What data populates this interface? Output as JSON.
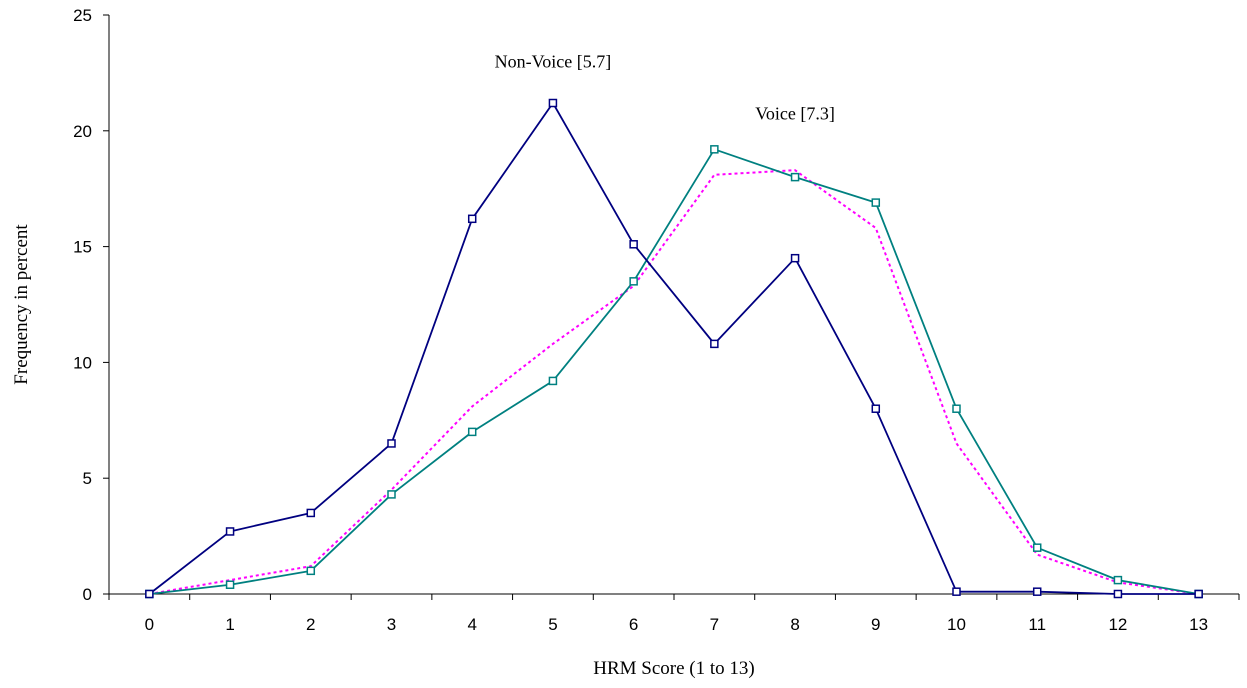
{
  "chart_data": {
    "type": "line",
    "title": "",
    "xlabel": "HRM Score (1 to 13)",
    "ylabel": "Frequency in percent",
    "x": [
      0,
      1,
      2,
      3,
      4,
      5,
      6,
      7,
      8,
      9,
      10,
      11,
      12,
      13
    ],
    "xlim": [
      -0.5,
      13.5
    ],
    "ylim": [
      0,
      25
    ],
    "yticks": [
      0,
      5,
      10,
      15,
      20,
      25
    ],
    "xticks": [
      0,
      1,
      2,
      3,
      4,
      5,
      6,
      7,
      8,
      9,
      10,
      11,
      12,
      13
    ],
    "grid": false,
    "legend": "none",
    "series": [
      {
        "key": "non_voice",
        "color": "#000080",
        "style": "solid",
        "marker": "square",
        "values": [
          0,
          2.7,
          3.5,
          6.5,
          16.2,
          21.2,
          15.1,
          10.8,
          14.5,
          8.0,
          0.1,
          0.1,
          0.0,
          0.0
        ]
      },
      {
        "key": "voice",
        "color": "#008080",
        "style": "solid",
        "marker": "square",
        "values": [
          0,
          0.4,
          1.0,
          4.3,
          7.0,
          9.2,
          13.5,
          19.2,
          18.0,
          16.9,
          8.0,
          2.0,
          0.6,
          0.0
        ]
      },
      {
        "key": "total",
        "color": "#ff00ff",
        "style": "dotted",
        "marker": "none",
        "values": [
          0,
          0.6,
          1.2,
          4.5,
          8.1,
          10.8,
          13.3,
          18.1,
          18.3,
          15.8,
          6.5,
          1.7,
          0.5,
          0.0
        ]
      }
    ],
    "annotations": [
      {
        "text": "Non-Voice [5.7]",
        "x": 5.0,
        "y": 23.0
      },
      {
        "text": "Voice [7.3]",
        "x": 8.0,
        "y": 20.75
      }
    ]
  }
}
